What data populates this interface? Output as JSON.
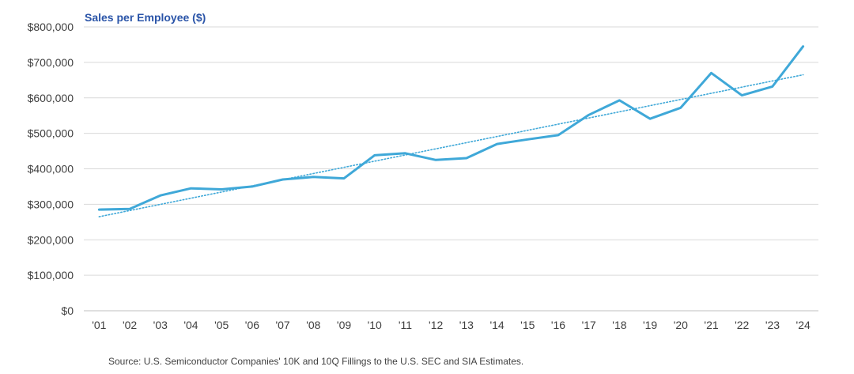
{
  "chart_data": {
    "type": "line",
    "title": "Sales per Employee ($)",
    "xlabel": "",
    "ylabel": "",
    "categories": [
      "'01",
      "'02",
      "'03",
      "'04",
      "'05",
      "'06",
      "'07",
      "'08",
      "'09",
      "'10",
      "'11",
      "'12",
      "'13",
      "'14",
      "'15",
      "'16",
      "'17",
      "'18",
      "'19",
      "'20",
      "'21",
      "'22",
      "'23",
      "'24"
    ],
    "series": [
      {
        "values": [
          285000,
          287000,
          325000,
          345000,
          342000,
          350000,
          370000,
          377000,
          373000,
          438000,
          444000,
          425000,
          430000,
          470000,
          483000,
          495000,
          552000,
          593000,
          541000,
          572000,
          670000,
          607000,
          632000,
          745000
        ],
        "color": "#3fa8d8"
      }
    ],
    "trendline": {
      "style": "dotted",
      "color": "#3fa8d8",
      "start": 265000,
      "end": 665000
    },
    "ylim": [
      0,
      800000
    ],
    "yticks": [
      0,
      100000,
      200000,
      300000,
      400000,
      500000,
      600000,
      700000,
      800000
    ],
    "ytick_labels": [
      "$0",
      "$100,000",
      "$200,000",
      "$300,000",
      "$400,000",
      "$500,000",
      "$600,000",
      "$700,000",
      "$800,000"
    ],
    "grid": true,
    "legend": "none",
    "source": "Source: U.S. Semiconductor Companies' 10K and 10Q Fillings to the U.S. SEC and SIA Estimates."
  }
}
